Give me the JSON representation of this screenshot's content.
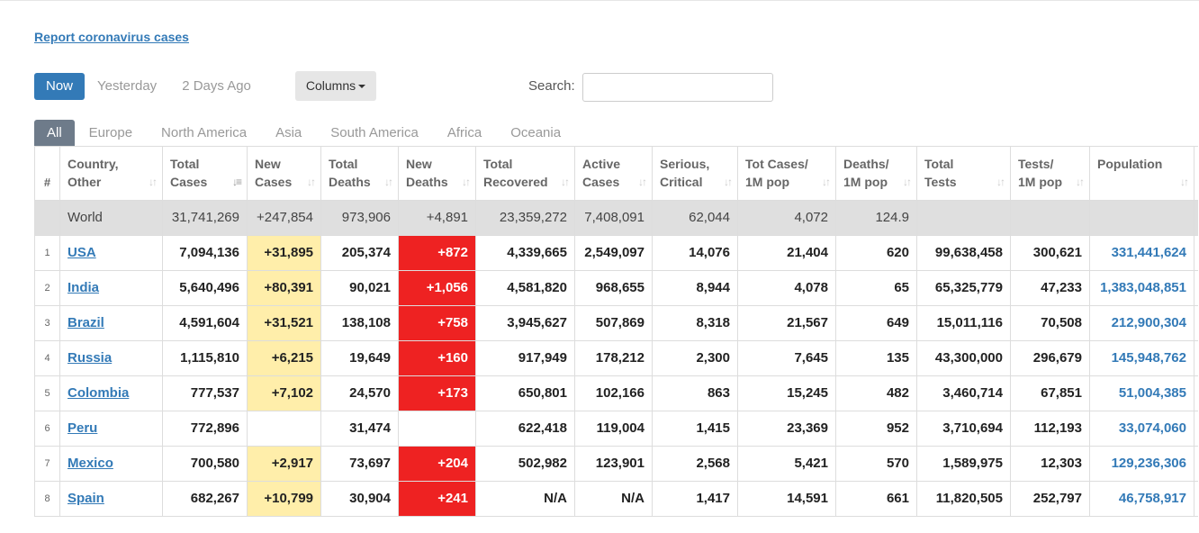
{
  "report_link": "Report coronavirus cases",
  "day_tabs": [
    "Now",
    "Yesterday",
    "2 Days Ago"
  ],
  "columns_button": "Columns",
  "search": {
    "label": "Search:",
    "value": "",
    "placeholder": ""
  },
  "region_tabs": [
    "All",
    "Europe",
    "North America",
    "Asia",
    "South America",
    "Africa",
    "Oceania"
  ],
  "colors": {
    "accent": "#337ab7",
    "new_cases_bg": "#ffeeaa",
    "new_deaths_bg": "#ee2222",
    "world_bg": "#dfdfdf"
  },
  "table": {
    "headers": [
      {
        "l1": "#",
        "l2": ""
      },
      {
        "l1": "Country,",
        "l2": "Other"
      },
      {
        "l1": "Total",
        "l2": "Cases"
      },
      {
        "l1": "New",
        "l2": "Cases"
      },
      {
        "l1": "Total",
        "l2": "Deaths"
      },
      {
        "l1": "New",
        "l2": "Deaths"
      },
      {
        "l1": "Total",
        "l2": "Recovered"
      },
      {
        "l1": "Active",
        "l2": "Cases"
      },
      {
        "l1": "Serious,",
        "l2": "Critical"
      },
      {
        "l1": "Tot Cases/",
        "l2": "1M pop"
      },
      {
        "l1": "Deaths/",
        "l2": "1M pop"
      },
      {
        "l1": "Total",
        "l2": "Tests"
      },
      {
        "l1": "Tests/",
        "l2": "1M pop"
      },
      {
        "l1": "",
        "l2": "Population"
      }
    ],
    "world": [
      "",
      "World",
      "31,741,269",
      "+247,854",
      "973,906",
      "+4,891",
      "23,359,272",
      "7,408,091",
      "62,044",
      "4,072",
      "124.9",
      "",
      "",
      ""
    ],
    "rows": [
      [
        "1",
        "USA",
        "7,094,136",
        "+31,895",
        "205,374",
        "+872",
        "4,339,665",
        "2,549,097",
        "14,076",
        "21,404",
        "620",
        "99,638,458",
        "300,621",
        "331,441,624"
      ],
      [
        "2",
        "India",
        "5,640,496",
        "+80,391",
        "90,021",
        "+1,056",
        "4,581,820",
        "968,655",
        "8,944",
        "4,078",
        "65",
        "65,325,779",
        "47,233",
        "1,383,048,851"
      ],
      [
        "3",
        "Brazil",
        "4,591,604",
        "+31,521",
        "138,108",
        "+758",
        "3,945,627",
        "507,869",
        "8,318",
        "21,567",
        "649",
        "15,011,116",
        "70,508",
        "212,900,304"
      ],
      [
        "4",
        "Russia",
        "1,115,810",
        "+6,215",
        "19,649",
        "+160",
        "917,949",
        "178,212",
        "2,300",
        "7,645",
        "135",
        "43,300,000",
        "296,679",
        "145,948,762"
      ],
      [
        "5",
        "Colombia",
        "777,537",
        "+7,102",
        "24,570",
        "+173",
        "650,801",
        "102,166",
        "863",
        "15,245",
        "482",
        "3,460,714",
        "67,851",
        "51,004,385"
      ],
      [
        "6",
        "Peru",
        "772,896",
        "",
        "31,474",
        "",
        "622,418",
        "119,004",
        "1,415",
        "23,369",
        "952",
        "3,710,694",
        "112,193",
        "33,074,060"
      ],
      [
        "7",
        "Mexico",
        "700,580",
        "+2,917",
        "73,697",
        "+204",
        "502,982",
        "123,901",
        "2,568",
        "5,421",
        "570",
        "1,589,975",
        "12,303",
        "129,236,306"
      ],
      [
        "8",
        "Spain",
        "682,267",
        "+10,799",
        "30,904",
        "+241",
        "N/A",
        "N/A",
        "1,417",
        "14,591",
        "661",
        "11,820,505",
        "252,797",
        "46,758,917"
      ]
    ]
  }
}
